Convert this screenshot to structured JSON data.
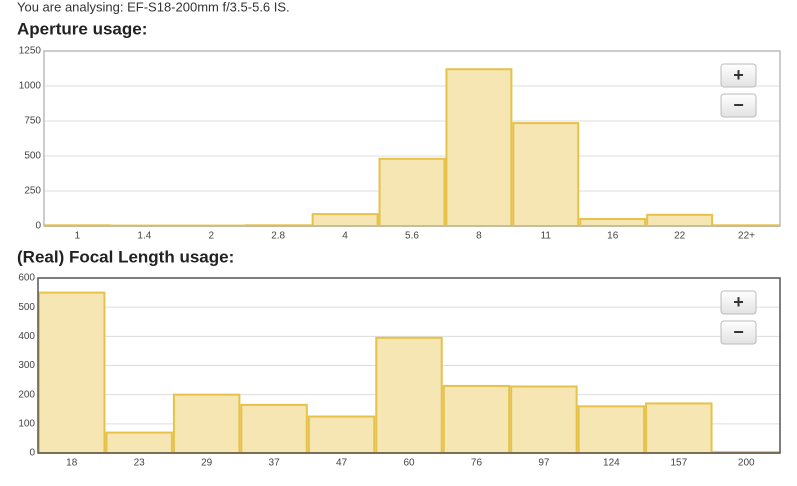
{
  "header": "You are analysing: EF-S18-200mm f/3.5-5.6 IS.",
  "controls": {
    "zoom_in": "+",
    "zoom_out": "−"
  },
  "chart_data": [
    {
      "type": "bar",
      "title": "Aperture usage:",
      "categories": [
        "1",
        "1.4",
        "2",
        "2.8",
        "4",
        "5.6",
        "8",
        "11",
        "16",
        "22",
        "22+"
      ],
      "values": [
        5,
        3,
        3,
        5,
        85,
        480,
        1120,
        735,
        50,
        80,
        5
      ],
      "color": "#f5e6b3",
      "edge_color": "#e6c24a",
      "ylim": [
        0,
        1250
      ],
      "yticks": [
        0,
        250,
        500,
        750,
        1000,
        1250
      ],
      "grid": true
    },
    {
      "type": "bar",
      "title": "(Real) Focal Length usage:",
      "categories": [
        "18",
        "23",
        "29",
        "37",
        "47",
        "60",
        "76",
        "97",
        "124",
        "157",
        "200"
      ],
      "values": [
        550,
        70,
        200,
        165,
        125,
        395,
        230,
        228,
        160,
        170,
        3
      ],
      "color": "#f5e6b3",
      "edge_color": "#e6c24a",
      "ylim": [
        0,
        600
      ],
      "yticks": [
        0,
        100,
        200,
        300,
        400,
        500,
        600
      ],
      "grid": true
    }
  ]
}
